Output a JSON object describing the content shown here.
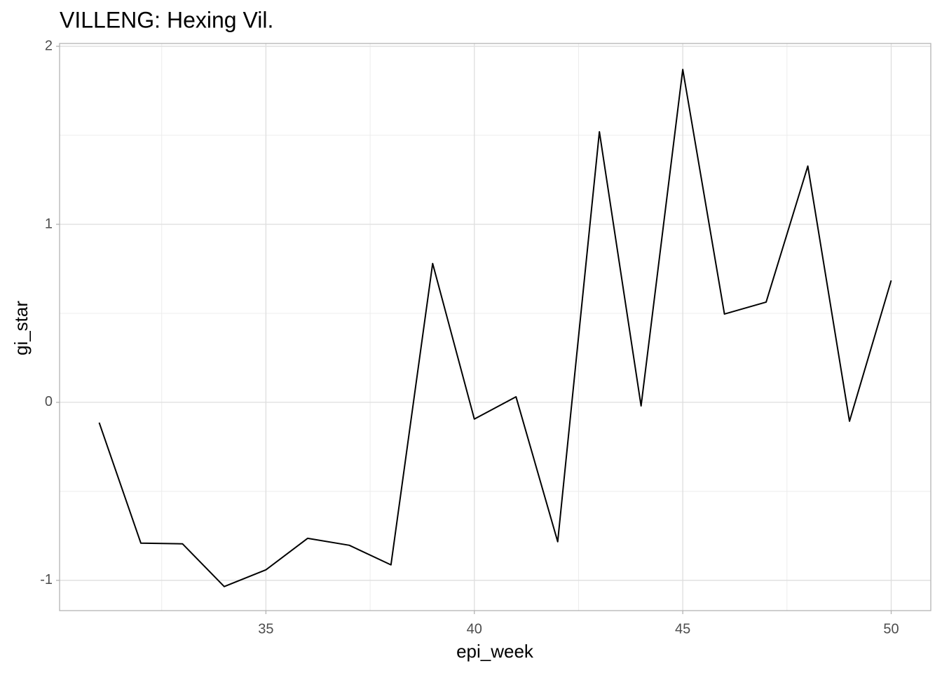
{
  "chart_data": {
    "type": "line",
    "title": "VILLENG: Hexing Vil.",
    "x_label": "epi_week",
    "y_label": "gi_star",
    "x": [
      31,
      32,
      33,
      34,
      35,
      36,
      37,
      38,
      39,
      40,
      41,
      42,
      43,
      44,
      45,
      46,
      47,
      48,
      49,
      50
    ],
    "series": [
      {
        "color": "#000000",
        "values": [
          -0.114,
          -0.791,
          -0.795,
          -1.035,
          -0.941,
          -0.764,
          -0.803,
          -0.913,
          0.78,
          -0.094,
          0.031,
          -0.783,
          1.52,
          -0.02,
          1.87,
          0.496,
          0.563,
          1.327,
          -0.106,
          0.685
        ]
      }
    ],
    "xlim": [
      30.05,
      50.95
    ],
    "xticks": [
      35,
      40,
      45,
      50
    ],
    "ylim": [
      -1.17,
      2.016
    ],
    "yticks": [
      -1,
      0,
      1,
      2
    ],
    "grid": true
  }
}
